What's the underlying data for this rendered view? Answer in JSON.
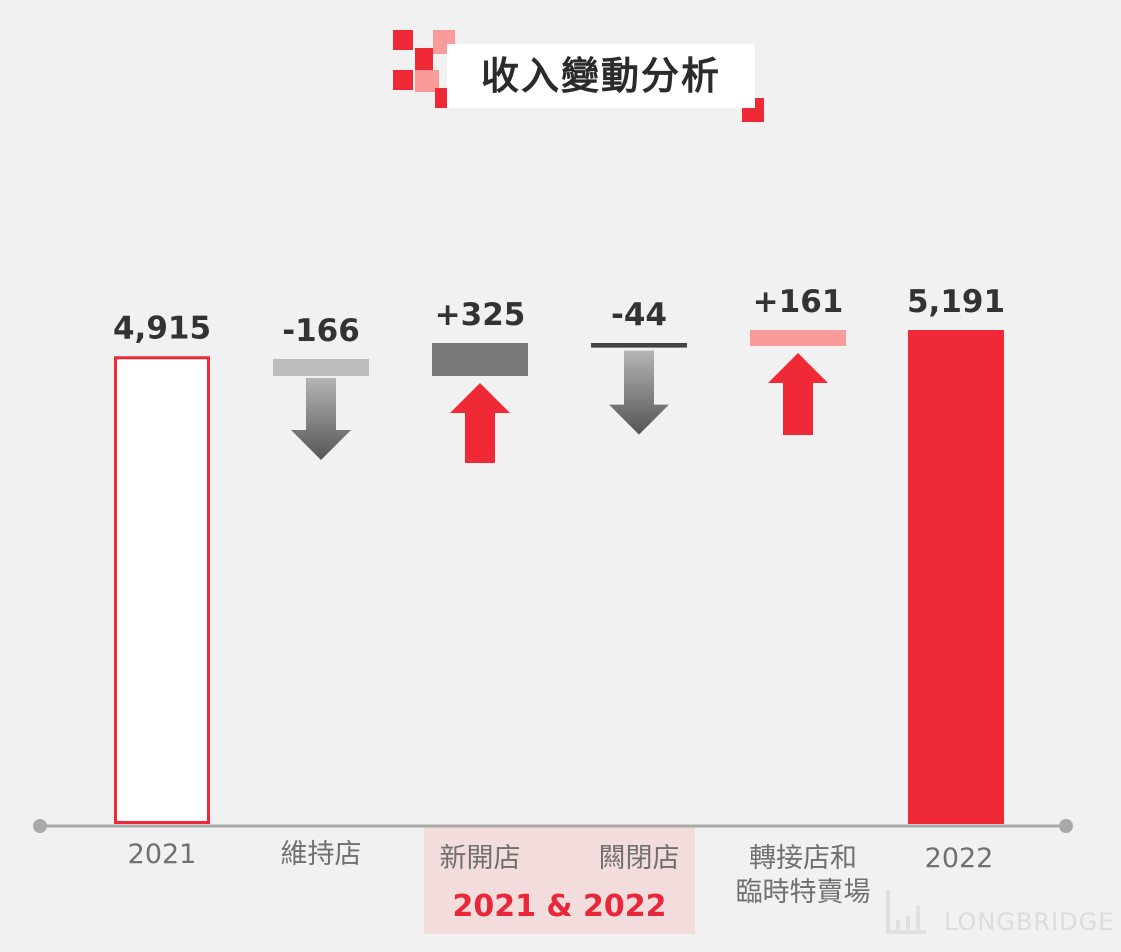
{
  "title": "收入變動分析",
  "watermark": "LONGBRIDGE",
  "period_label": "2021 & 2022",
  "colors": {
    "background": "#f1f1f1",
    "red": "#f02937",
    "pink": "#f99b9b",
    "light_gray": "#bdbdbd",
    "gray": "#7a7a7a",
    "dark_line": "#444444",
    "axis": "#a9a9a9",
    "highlight_band": "#f3dcdc"
  },
  "chart_data": {
    "type": "bar",
    "subtype": "waterfall",
    "title": "收入變動分析",
    "categories": [
      "2021",
      "維持店",
      "新開店",
      "闗閉店",
      "轉接店和\n臨時特賣場",
      "2022"
    ],
    "values": [
      4915,
      -166,
      325,
      -44,
      161,
      5191
    ],
    "value_labels": [
      "4,915",
      "-166",
      "+325",
      "-44",
      "+161",
      "5,191"
    ],
    "kinds": [
      "total",
      "decrease",
      "increase",
      "decrease",
      "increase",
      "total"
    ],
    "arrows": [
      "none",
      "down",
      "up",
      "down",
      "up",
      "none"
    ],
    "group_band": {
      "label": "2021 & 2022",
      "categories": [
        "新開店",
        "闗閉店"
      ]
    },
    "legend": "none",
    "grid": false
  }
}
